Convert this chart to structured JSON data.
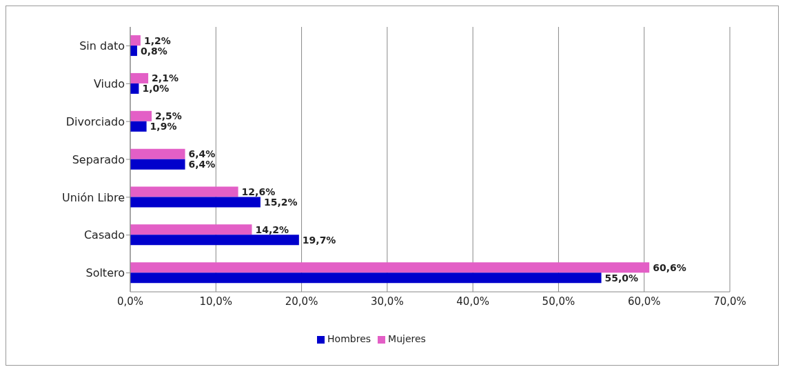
{
  "chart_data": {
    "type": "bar",
    "orientation": "horizontal",
    "categories": [
      "Sin dato",
      "Viudo",
      "Divorciado",
      "Separado",
      "Unión Libre",
      "Casado",
      "Soltero"
    ],
    "series": [
      {
        "name": "Mujeres",
        "color": "#e35fc6",
        "values": [
          1.2,
          2.1,
          2.5,
          6.4,
          12.6,
          14.2,
          60.6
        ],
        "value_labels": [
          "1,2%",
          "2,1%",
          "2,5%",
          "6,4%",
          "12,6%",
          "14,2%",
          "60,6%"
        ]
      },
      {
        "name": "Hombres",
        "color": "#0000cc",
        "values": [
          0.8,
          1.0,
          1.9,
          6.4,
          15.2,
          19.7,
          55.0
        ],
        "value_labels": [
          "0,8%",
          "1,0%",
          "1,9%",
          "6,4%",
          "15,2%",
          "19,7%",
          "55,0%"
        ]
      }
    ],
    "xlim": [
      0,
      70
    ],
    "xticks": [
      {
        "value": 0,
        "label": "0,0%"
      },
      {
        "value": 10,
        "label": "10,0%"
      },
      {
        "value": 20,
        "label": "20,0%"
      },
      {
        "value": 30,
        "label": "30,0%"
      },
      {
        "value": 40,
        "label": "40,0%"
      },
      {
        "value": 50,
        "label": "50,0%"
      },
      {
        "value": 60,
        "label": "60,0%"
      },
      {
        "value": 70,
        "label": "70,0%"
      }
    ],
    "grid": "x",
    "legend": "bottom"
  }
}
